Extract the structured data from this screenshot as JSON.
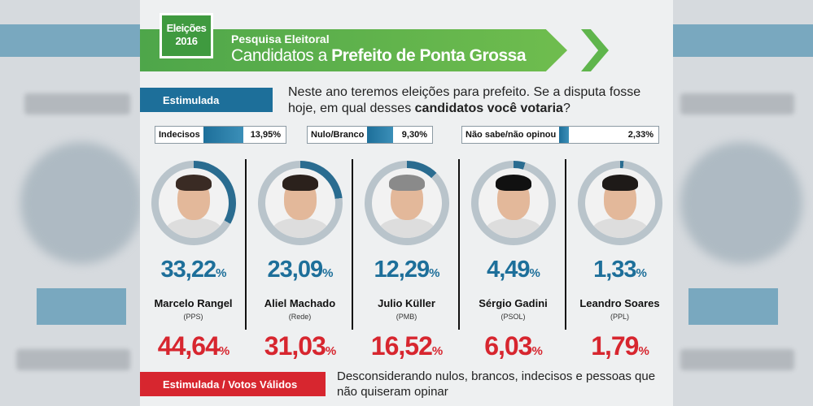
{
  "header": {
    "badge_line1": "Eleições",
    "badge_line2": "2016",
    "subtitle": "Pesquisa Eleitoral",
    "title_prefix": "Candidatos a ",
    "title_bold": "Prefeito de Ponta Grossa"
  },
  "stimulated_label": "Estimulada",
  "question": {
    "text": "Neste ano teremos eleições para prefeito. Se a disputa fosse hoje, em qual desses ",
    "bold": "candidatos você votaria",
    "end": "?"
  },
  "summary": [
    {
      "label": "Indecisos",
      "value": "13,95",
      "unit": "%",
      "fraction": 0.1395
    },
    {
      "label": "Nulo/Branco",
      "value": "9,30",
      "unit": "%",
      "fraction": 0.093
    },
    {
      "label": "Não sabe/não opinou",
      "value": "2,33",
      "unit": "%",
      "fraction": 0.0233
    }
  ],
  "candidates": [
    {
      "name": "Marcelo Rangel",
      "party": "(PPS)",
      "pct": "33,22",
      "valid": "44,64",
      "fraction": 0.3322,
      "hair": "#3a2b24"
    },
    {
      "name": "Aliel Machado",
      "party": "(Rede)",
      "pct": "23,09",
      "valid": "31,03",
      "fraction": 0.2309,
      "hair": "#2b211c"
    },
    {
      "name": "Julio Küller",
      "party": "(PMB)",
      "pct": "12,29",
      "valid": "16,52",
      "fraction": 0.1229,
      "hair": "#8a8a8a"
    },
    {
      "name": "Sérgio Gadini",
      "party": "(PSOL)",
      "pct": "4,49",
      "valid": "6,03",
      "fraction": 0.0449,
      "hair": "#111111"
    },
    {
      "name": "Leandro Soares",
      "party": "(PPL)",
      "pct": "1,33",
      "valid": "1,79",
      "fraction": 0.0133,
      "hair": "#1e1a18"
    }
  ],
  "unit": "%",
  "valid_votes_label": "Estimulada / Votos Válidos",
  "valid_votes_note": "Desconsiderando nulos, brancos, indecisos e pessoas que não quiseram opinar",
  "colors": {
    "blue": "#1d6f9a",
    "red": "#d7262f",
    "green": "#4ea64a"
  }
}
